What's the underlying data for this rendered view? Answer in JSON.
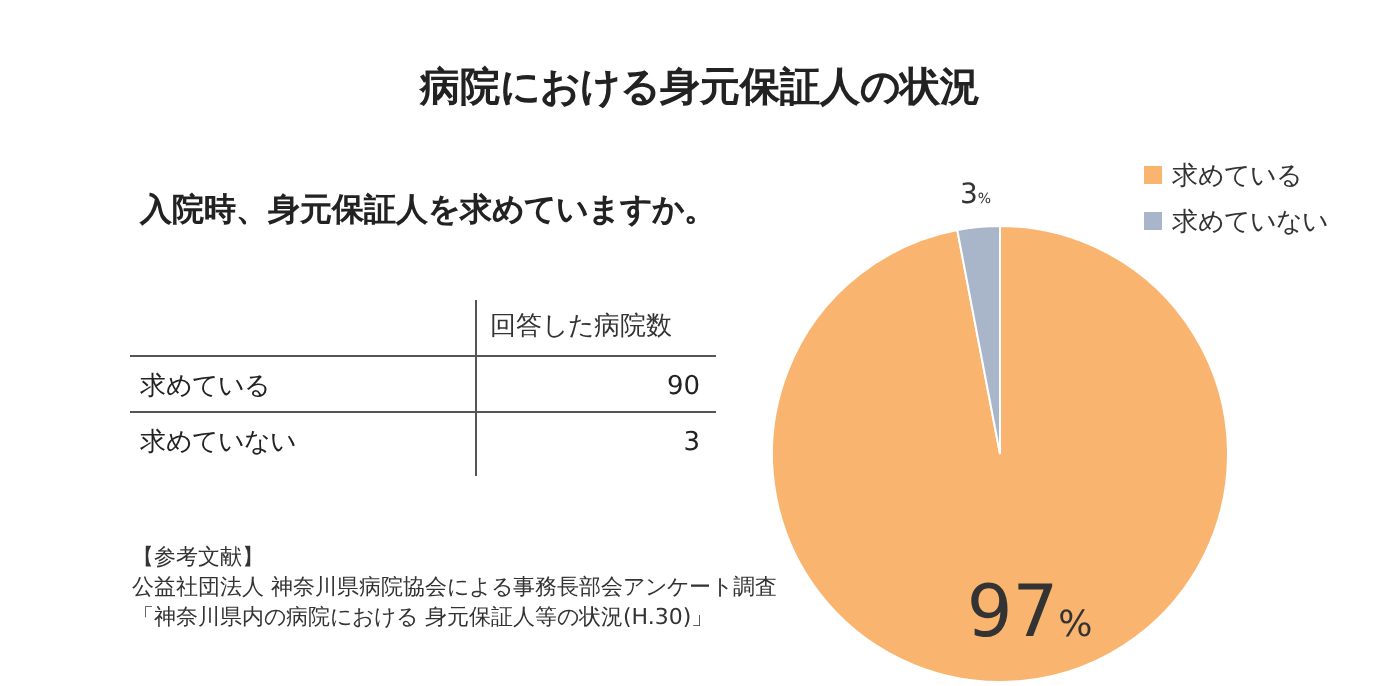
{
  "chart_data": [
    {
      "type": "other",
      "title": "入院時、身元保証人を求めていますか。",
      "ylabel": "回答した病院数",
      "categories": [
        "求めている",
        "求めていない"
      ],
      "values": [
        90,
        3
      ],
      "data_labels": true,
      "annotations": [
        "【参考文献】",
        "公益社団法人 神奈川県病院協会による事務長部会アンケート調査",
        "「神奈川県内の病院における 身元保証人等の状況(H.30)」"
      ]
    },
    {
      "type": "pie",
      "title": "病院における身元保証人の状況",
      "categories": [
        "求めている",
        "求めていない"
      ],
      "values": [
        97,
        3
      ],
      "colors": [
        "#f9b46f",
        "#a9b5c8"
      ],
      "value_labels": [
        "97%",
        "3%"
      ],
      "legend": "top right"
    }
  ]
}
